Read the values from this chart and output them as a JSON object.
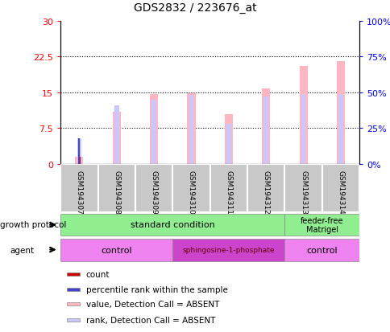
{
  "title": "GDS2832 / 223676_at",
  "samples": [
    "GSM194307",
    "GSM194308",
    "GSM194309",
    "GSM194310",
    "GSM194311",
    "GSM194312",
    "GSM194313",
    "GSM194314"
  ],
  "value_absent": [
    1.5,
    11.0,
    14.7,
    14.8,
    10.5,
    15.8,
    20.5,
    21.5
  ],
  "rank_absent_pct": [
    18.0,
    41.0,
    45.0,
    48.0,
    28.0,
    47.0,
    49.0,
    49.0
  ],
  "count_val": [
    1.5,
    null,
    null,
    null,
    null,
    null,
    null,
    null
  ],
  "percentile_val_pct": [
    18.0,
    null,
    null,
    null,
    null,
    null,
    null,
    null
  ],
  "left_ylim": [
    0,
    30
  ],
  "right_ylim": [
    0,
    100
  ],
  "left_yticks": [
    0,
    7.5,
    15,
    22.5,
    30
  ],
  "right_yticks": [
    0,
    25,
    50,
    75,
    100
  ],
  "left_yticklabels": [
    "0",
    "7.5",
    "15",
    "22.5",
    "30"
  ],
  "right_yticklabels": [
    "0%",
    "25%",
    "50%",
    "75%",
    "100%"
  ],
  "color_value_absent": "#FFB6C1",
  "color_rank_absent": "#C8C8FF",
  "color_count": "#CC0000",
  "color_percentile": "#4444CC",
  "bg_color": "#FFFFFF",
  "legend_items": [
    {
      "label": "count",
      "color": "#CC0000"
    },
    {
      "label": "percentile rank within the sample",
      "color": "#4444CC"
    },
    {
      "label": "value, Detection Call = ABSENT",
      "color": "#FFB6C1"
    },
    {
      "label": "rank, Detection Call = ABSENT",
      "color": "#C8C8FF"
    }
  ]
}
